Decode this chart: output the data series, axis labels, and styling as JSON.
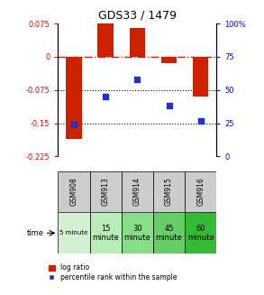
{
  "title": "GDS33 / 1479",
  "categories": [
    "GSM908",
    "GSM913",
    "GSM914",
    "GSM915",
    "GSM916"
  ],
  "log_ratios": [
    -0.185,
    0.075,
    0.065,
    -0.015,
    -0.09
  ],
  "percentiles": [
    24,
    45,
    58,
    38,
    27
  ],
  "ylim_left": [
    -0.225,
    0.075
  ],
  "ylim_right": [
    0,
    100
  ],
  "yticks_left": [
    0.075,
    0,
    -0.075,
    -0.15,
    -0.225
  ],
  "ytick_labels_left": [
    "0.075",
    "0",
    "-0.075",
    "-0.15",
    "-0.225"
  ],
  "yticks_right": [
    100,
    75,
    50,
    25,
    0
  ],
  "ytick_labels_right": [
    "100%",
    "75",
    "50",
    "25",
    "0"
  ],
  "bar_color": "#cc2200",
  "scatter_color": "#2233cc",
  "hline_zero_color": "#cc2200",
  "hline_dotted_color": "#000000",
  "time_labels": [
    "5 minute",
    "15\nminute",
    "30\nminute",
    "45\nminute",
    "60\nminute"
  ],
  "time_bg_colors": [
    "#d4f0d4",
    "#b8ecb8",
    "#88dd88",
    "#66cc66",
    "#33bb33"
  ],
  "gsm_bg_color": "#cccccc",
  "legend_bar_label": "log ratio",
  "legend_scatter_label": "percentile rank within the sample",
  "fig_width": 2.93,
  "fig_height": 3.27,
  "dpi": 100
}
